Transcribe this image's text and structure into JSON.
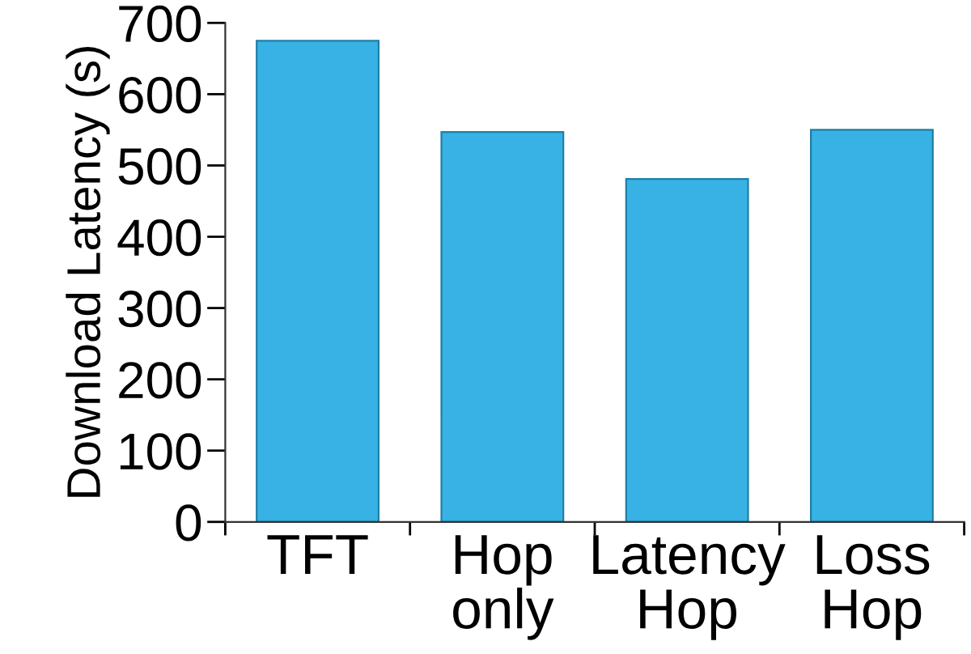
{
  "chart_data": {
    "type": "bar",
    "ylabel": "Download Latency (s)",
    "categories": [
      "TFT",
      "Hop only",
      "Latency Hop",
      "Loss Hop"
    ],
    "values": [
      675,
      547,
      481,
      550
    ],
    "color": "#38b2e4",
    "ylim": [
      0,
      700
    ],
    "yticks": [
      0,
      100,
      200,
      300,
      400,
      500,
      600,
      700
    ],
    "grid": false
  }
}
